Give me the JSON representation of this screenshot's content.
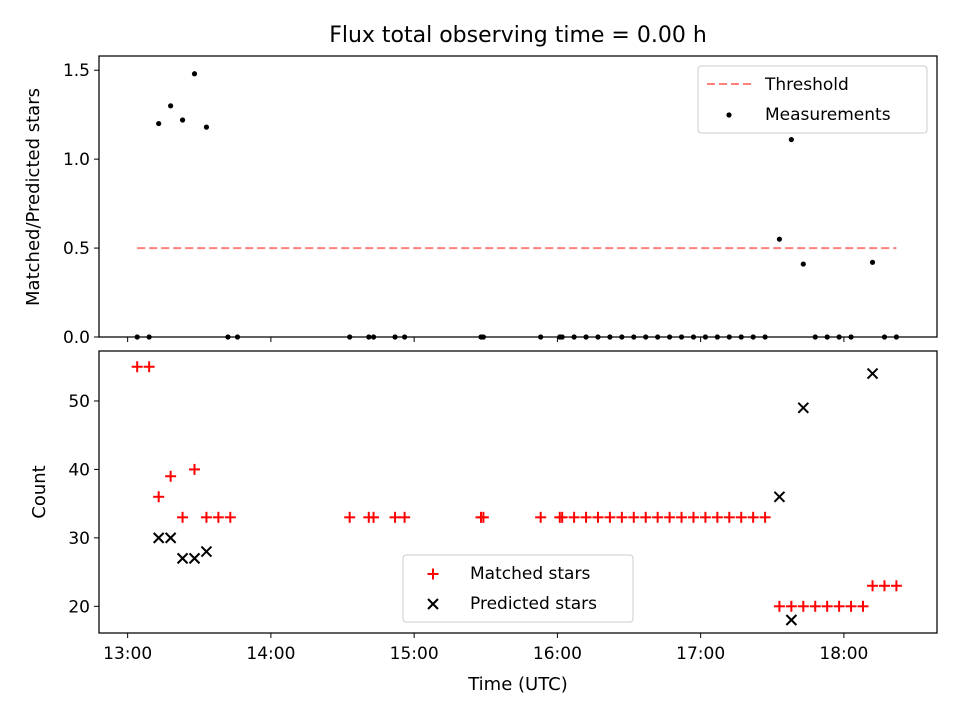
{
  "title": "Flux total observing time = 0.00 h",
  "xlabel": "Time (UTC)",
  "x_ticks": [
    "13:00",
    "14:00",
    "15:00",
    "16:00",
    "17:00",
    "18:00"
  ],
  "colors": {
    "threshold": "#ff7f7f",
    "measurement": "#000000",
    "matched": "#ff0000",
    "predicted": "#000000"
  },
  "chart_data": [
    {
      "type": "scatter",
      "ylabel": "Matched/Predicted stars",
      "xlim": [
        "12:48",
        "18:39"
      ],
      "ylim": [
        0,
        1.58
      ],
      "y_ticks": [
        "0.0",
        "0.5",
        "1.0",
        "1.5"
      ],
      "y_tick_values": [
        0,
        0.5,
        1.0,
        1.5
      ],
      "legend_position": "top-right",
      "threshold": {
        "name": "Threshold",
        "value": 0.5,
        "x_start": "13:04",
        "x_end": "18:22"
      },
      "series": [
        {
          "name": "Measurements",
          "points": [
            [
              "13:04",
              0
            ],
            [
              "13:09",
              0
            ],
            [
              "13:13",
              1.2
            ],
            [
              "13:18",
              1.3
            ],
            [
              "13:23",
              1.22
            ],
            [
              "13:28",
              1.48
            ],
            [
              "13:33",
              1.18
            ],
            [
              "13:42",
              0
            ],
            [
              "13:46",
              0
            ],
            [
              "14:33",
              0
            ],
            [
              "14:41",
              0
            ],
            [
              "14:43",
              0
            ],
            [
              "14:52",
              0
            ],
            [
              "14:56",
              0
            ],
            [
              "15:28",
              0
            ],
            [
              "15:29",
              0
            ],
            [
              "15:53",
              0
            ],
            [
              "16:01",
              0
            ],
            [
              "16:02",
              0
            ],
            [
              "16:07",
              0
            ],
            [
              "16:12",
              0
            ],
            [
              "16:17",
              0
            ],
            [
              "16:22",
              0
            ],
            [
              "16:27",
              0
            ],
            [
              "16:32",
              0
            ],
            [
              "16:37",
              0
            ],
            [
              "16:42",
              0
            ],
            [
              "16:47",
              0
            ],
            [
              "16:52",
              0
            ],
            [
              "16:57",
              0
            ],
            [
              "17:02",
              0
            ],
            [
              "17:07",
              0
            ],
            [
              "17:12",
              0
            ],
            [
              "17:17",
              0
            ],
            [
              "17:22",
              0
            ],
            [
              "17:27",
              0
            ],
            [
              "17:33",
              0.55
            ],
            [
              "17:38",
              1.11
            ],
            [
              "17:43",
              0.41
            ],
            [
              "17:48",
              0
            ],
            [
              "17:53",
              0
            ],
            [
              "17:58",
              0
            ],
            [
              "18:03",
              0
            ],
            [
              "18:12",
              0.42
            ],
            [
              "18:17",
              0
            ],
            [
              "18:22",
              0
            ]
          ]
        }
      ]
    },
    {
      "type": "scatter",
      "ylabel": "Count",
      "xlim": [
        "12:48",
        "18:39"
      ],
      "ylim": [
        16.1,
        57.3
      ],
      "y_ticks": [
        "20",
        "30",
        "40",
        "50"
      ],
      "y_tick_values": [
        20,
        30,
        40,
        50
      ],
      "legend_position": "lower-center",
      "series": [
        {
          "name": "Matched stars",
          "marker": "plus",
          "points": [
            [
              "13:04",
              55
            ],
            [
              "13:09",
              55
            ],
            [
              "13:13",
              36
            ],
            [
              "13:18",
              39
            ],
            [
              "13:23",
              33
            ],
            [
              "13:28",
              40
            ],
            [
              "13:33",
              33
            ],
            [
              "13:38",
              33
            ],
            [
              "13:43",
              33
            ],
            [
              "14:33",
              33
            ],
            [
              "14:41",
              33
            ],
            [
              "14:43",
              33
            ],
            [
              "14:52",
              33
            ],
            [
              "14:56",
              33
            ],
            [
              "15:28",
              33
            ],
            [
              "15:29",
              33
            ],
            [
              "15:53",
              33
            ],
            [
              "16:01",
              33
            ],
            [
              "16:02",
              33
            ],
            [
              "16:07",
              33
            ],
            [
              "16:12",
              33
            ],
            [
              "16:17",
              33
            ],
            [
              "16:22",
              33
            ],
            [
              "16:27",
              33
            ],
            [
              "16:32",
              33
            ],
            [
              "16:37",
              33
            ],
            [
              "16:42",
              33
            ],
            [
              "16:47",
              33
            ],
            [
              "16:52",
              33
            ],
            [
              "16:57",
              33
            ],
            [
              "17:02",
              33
            ],
            [
              "17:07",
              33
            ],
            [
              "17:12",
              33
            ],
            [
              "17:17",
              33
            ],
            [
              "17:22",
              33
            ],
            [
              "17:27",
              33
            ],
            [
              "17:33",
              20
            ],
            [
              "17:38",
              20
            ],
            [
              "17:43",
              20
            ],
            [
              "17:48",
              20
            ],
            [
              "17:53",
              20
            ],
            [
              "17:58",
              20
            ],
            [
              "18:03",
              20
            ],
            [
              "18:08",
              20
            ],
            [
              "18:12",
              23
            ],
            [
              "18:17",
              23
            ],
            [
              "18:22",
              23
            ]
          ]
        },
        {
          "name": "Predicted stars",
          "marker": "x",
          "points": [
            [
              "13:13",
              30
            ],
            [
              "13:18",
              30
            ],
            [
              "13:23",
              27
            ],
            [
              "13:28",
              27
            ],
            [
              "13:33",
              28
            ],
            [
              "17:33",
              36
            ],
            [
              "17:38",
              18
            ],
            [
              "17:43",
              49
            ],
            [
              "18:12",
              54
            ]
          ]
        }
      ]
    }
  ]
}
